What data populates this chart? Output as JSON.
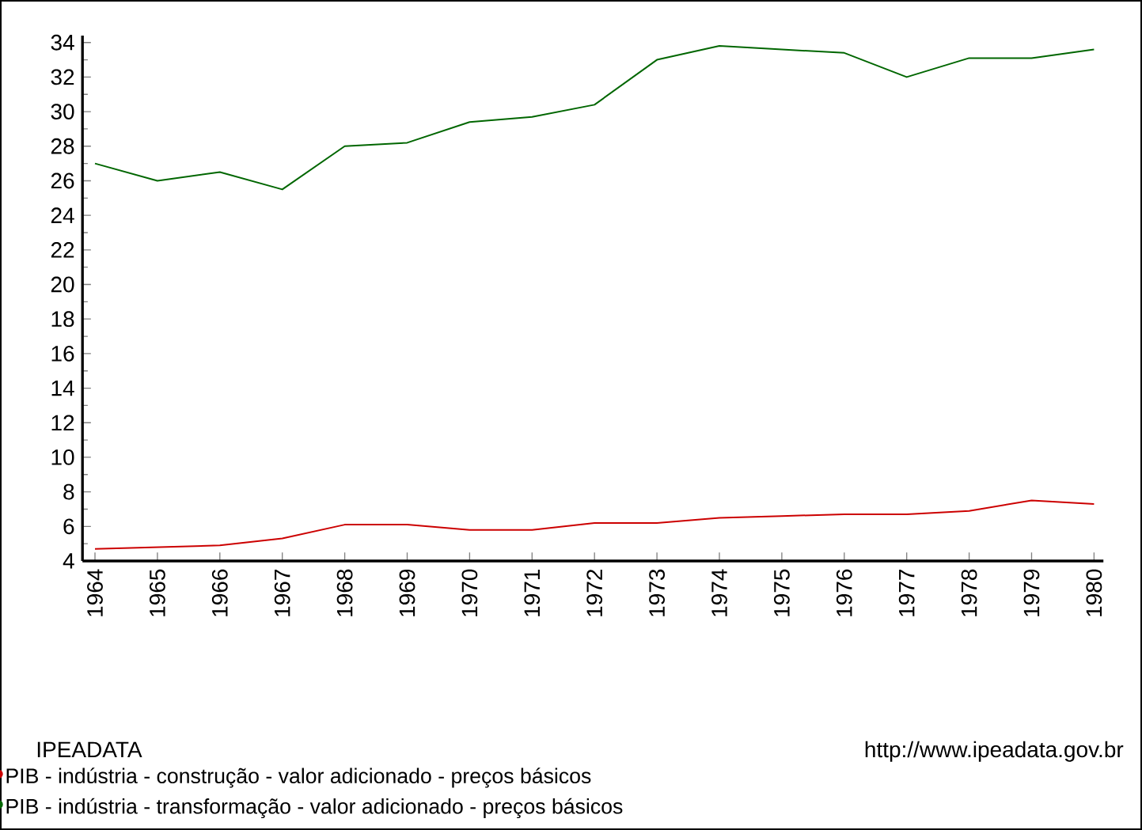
{
  "chart_data": {
    "type": "line",
    "categories": [
      "1964",
      "1965",
      "1966",
      "1967",
      "1968",
      "1969",
      "1970",
      "1971",
      "1972",
      "1973",
      "1974",
      "1975",
      "1976",
      "1977",
      "1978",
      "1979",
      "1980"
    ],
    "series": [
      {
        "name": "PIB - indústria - construção - valor adicionado - preços básicos",
        "color": "#cc0000",
        "values": [
          4.7,
          4.8,
          4.9,
          5.3,
          6.1,
          6.1,
          5.8,
          5.8,
          6.2,
          6.2,
          6.5,
          6.6,
          6.7,
          6.7,
          6.9,
          7.5,
          7.3
        ]
      },
      {
        "name": "PIB - indústria - transformação - valor adicionado - preços básicos",
        "color": "#006600",
        "values": [
          27.0,
          26.0,
          26.5,
          25.5,
          28.0,
          28.2,
          29.4,
          29.7,
          30.4,
          33.0,
          33.8,
          33.6,
          33.4,
          32.0,
          33.1,
          33.1,
          33.6
        ]
      }
    ],
    "ylim": [
      4,
      34.4
    ],
    "yticks": [
      4,
      6,
      8,
      10,
      12,
      14,
      16,
      18,
      20,
      22,
      24,
      26,
      28,
      30,
      32,
      34
    ],
    "legend": "bottom left",
    "marker": "none",
    "line_style": "solid",
    "annotations": [
      "IPEADATA",
      "http://www.ipeadata.gov.br"
    ]
  }
}
